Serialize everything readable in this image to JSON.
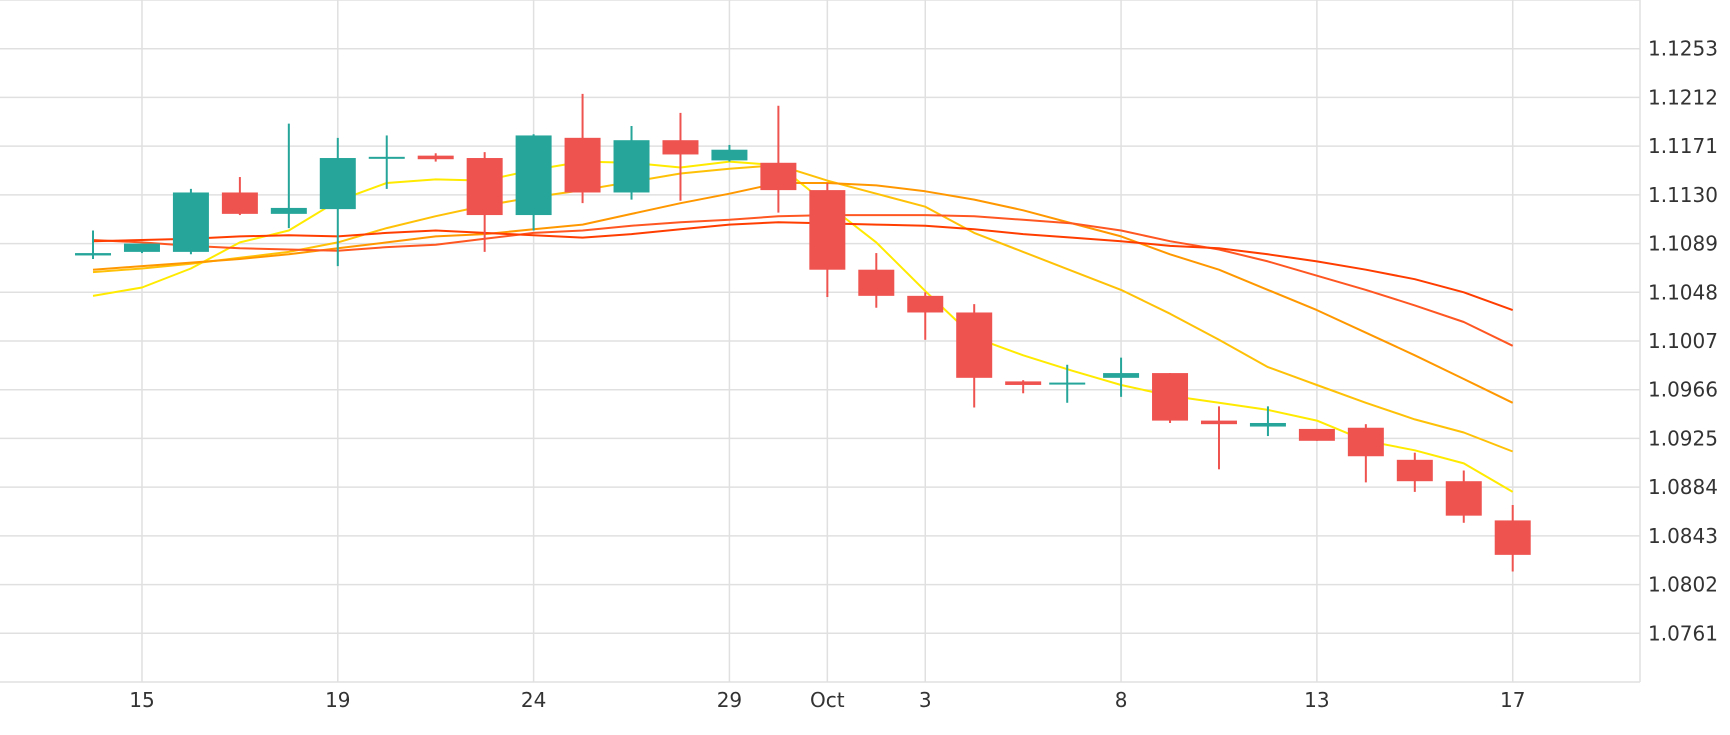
{
  "chart_data": {
    "type": "candlestick",
    "colors": {
      "up": "#26a69a",
      "down": "#ef5350",
      "grid": "#e0e0e0",
      "axis_text": "#333333",
      "ma_lines": [
        "#ffea00",
        "#ffc107",
        "#ff9800",
        "#ff5722",
        "#ff3d00"
      ]
    },
    "x_ticks": [
      {
        "day": 15,
        "label": "15"
      },
      {
        "day": 19,
        "label": "19"
      },
      {
        "day": 23,
        "label": "24"
      },
      {
        "day": 27,
        "label": "29"
      },
      {
        "day": 29,
        "label": "Oct"
      },
      {
        "day": 31,
        "label": "3"
      },
      {
        "day": 35,
        "label": "8"
      },
      {
        "day": 39,
        "label": "13"
      },
      {
        "day": 43,
        "label": "17"
      }
    ],
    "y_ticks": [
      "1.0761",
      "1.0802",
      "1.0843",
      "1.0884",
      "1.0925",
      "1.0966",
      "1.1007",
      "1.1048",
      "1.1089",
      "1.1130",
      "1.1171",
      "1.1212",
      "1.1253"
    ],
    "ylim": [
      1.072,
      1.1294
    ],
    "xlim": [
      12.1,
      45.6
    ],
    "candles": [
      {
        "day": 14,
        "open": 1.1079,
        "high": 1.11,
        "low": 1.1076,
        "close": 1.1081
      },
      {
        "day": 15,
        "open": 1.1082,
        "high": 1.1089,
        "low": 1.1081,
        "close": 1.1089
      },
      {
        "day": 16,
        "open": 1.1082,
        "high": 1.1135,
        "low": 1.108,
        "close": 1.1132
      },
      {
        "day": 17,
        "open": 1.1132,
        "high": 1.1145,
        "low": 1.1113,
        "close": 1.1114
      },
      {
        "day": 18,
        "open": 1.1114,
        "high": 1.119,
        "low": 1.1102,
        "close": 1.1119
      },
      {
        "day": 19,
        "open": 1.1118,
        "high": 1.1178,
        "low": 1.107,
        "close": 1.1161
      },
      {
        "day": 20,
        "open": 1.1161,
        "high": 1.118,
        "low": 1.1135,
        "close": 1.1162
      },
      {
        "day": 21,
        "open": 1.1163,
        "high": 1.1165,
        "low": 1.1158,
        "close": 1.116
      },
      {
        "day": 22,
        "open": 1.1161,
        "high": 1.1166,
        "low": 1.1082,
        "close": 1.1113
      },
      {
        "day": 23,
        "open": 1.1113,
        "high": 1.1181,
        "low": 1.11,
        "close": 1.118
      },
      {
        "day": 24,
        "open": 1.1178,
        "high": 1.1215,
        "low": 1.1123,
        "close": 1.1132
      },
      {
        "day": 25,
        "open": 1.1132,
        "high": 1.1188,
        "low": 1.1126,
        "close": 1.1176
      },
      {
        "day": 26,
        "open": 1.1176,
        "high": 1.1199,
        "low": 1.1125,
        "close": 1.1164
      },
      {
        "day": 27,
        "open": 1.1159,
        "high": 1.1172,
        "low": 1.1158,
        "close": 1.1168
      },
      {
        "day": 28,
        "open": 1.1157,
        "high": 1.1205,
        "low": 1.1115,
        "close": 1.1134
      },
      {
        "day": 29,
        "open": 1.1134,
        "high": 1.114,
        "low": 1.1044,
        "close": 1.1067
      },
      {
        "day": 30,
        "open": 1.1067,
        "high": 1.1081,
        "low": 1.1035,
        "close": 1.1045
      },
      {
        "day": 31,
        "open": 1.1045,
        "high": 1.1048,
        "low": 1.1008,
        "close": 1.1031
      },
      {
        "day": 32,
        "open": 1.1031,
        "high": 1.1038,
        "low": 1.0951,
        "close": 1.0976
      },
      {
        "day": 33,
        "open": 1.0973,
        "high": 1.0974,
        "low": 1.0963,
        "close": 1.097
      },
      {
        "day": 33.9,
        "open": 1.0972,
        "high": 1.0987,
        "low": 1.0955,
        "close": 1.0972
      },
      {
        "day": 35,
        "open": 1.0976,
        "high": 1.0993,
        "low": 1.096,
        "close": 1.098
      },
      {
        "day": 36,
        "open": 1.098,
        "high": 1.098,
        "low": 1.0938,
        "close": 1.094
      },
      {
        "day": 37,
        "open": 1.094,
        "high": 1.0952,
        "low": 1.0899,
        "close": 1.0937
      },
      {
        "day": 38,
        "open": 1.0935,
        "high": 1.0952,
        "low": 1.0927,
        "close": 1.0938
      },
      {
        "day": 39,
        "open": 1.0933,
        "high": 1.0933,
        "low": 1.0923,
        "close": 1.0923
      },
      {
        "day": 40,
        "open": 1.0934,
        "high": 1.0937,
        "low": 1.0888,
        "close": 1.091
      },
      {
        "day": 41,
        "open": 1.0907,
        "high": 1.0913,
        "low": 1.088,
        "close": 1.0889
      },
      {
        "day": 42,
        "open": 1.0889,
        "high": 1.0898,
        "low": 1.0854,
        "close": 1.086
      },
      {
        "day": 43,
        "open": 1.0856,
        "high": 1.0869,
        "low": 1.0813,
        "close": 1.0827
      }
    ],
    "moving_averages": [
      {
        "color": "#ffea00",
        "points": [
          [
            14,
            1.1045
          ],
          [
            15,
            1.1052
          ],
          [
            16,
            1.1068
          ],
          [
            17,
            1.109
          ],
          [
            18,
            1.11
          ],
          [
            19,
            1.1125
          ],
          [
            20,
            1.114
          ],
          [
            21,
            1.1143
          ],
          [
            22,
            1.1142
          ],
          [
            23,
            1.1151
          ],
          [
            24,
            1.1158
          ],
          [
            25,
            1.1157
          ],
          [
            26,
            1.1153
          ],
          [
            27,
            1.1158
          ],
          [
            28,
            1.1155
          ],
          [
            29,
            1.1122
          ],
          [
            30,
            1.109
          ],
          [
            31,
            1.1049
          ],
          [
            32,
            1.101
          ],
          [
            33,
            1.0995
          ],
          [
            34,
            1.0982
          ],
          [
            35,
            1.097
          ],
          [
            36,
            1.0961
          ],
          [
            37,
            1.0955
          ],
          [
            38,
            1.0949
          ],
          [
            39,
            1.094
          ],
          [
            40,
            1.0923
          ],
          [
            41,
            1.0915
          ],
          [
            42,
            1.0904
          ],
          [
            43,
            1.088
          ]
        ]
      },
      {
        "color": "#ffc107",
        "points": [
          [
            14,
            1.1065
          ],
          [
            15,
            1.1068
          ],
          [
            16,
            1.1072
          ],
          [
            17,
            1.1077
          ],
          [
            18,
            1.1082
          ],
          [
            19,
            1.109
          ],
          [
            20,
            1.1102
          ],
          [
            21,
            1.1112
          ],
          [
            22,
            1.1121
          ],
          [
            23,
            1.1128
          ],
          [
            24,
            1.1134
          ],
          [
            25,
            1.1141
          ],
          [
            26,
            1.1148
          ],
          [
            27,
            1.1152
          ],
          [
            28,
            1.1155
          ],
          [
            29,
            1.1142
          ],
          [
            30,
            1.1131
          ],
          [
            31,
            1.112
          ],
          [
            32,
            1.1098
          ],
          [
            33,
            1.1082
          ],
          [
            34,
            1.1066
          ],
          [
            35,
            1.105
          ],
          [
            36,
            1.103
          ],
          [
            37,
            1.1008
          ],
          [
            38,
            1.0985
          ],
          [
            39,
            1.097
          ],
          [
            40,
            1.0955
          ],
          [
            41,
            1.0941
          ],
          [
            42,
            1.093
          ],
          [
            43,
            1.0914
          ]
        ]
      },
      {
        "color": "#ff9800",
        "points": [
          [
            14,
            1.1067
          ],
          [
            15,
            1.107
          ],
          [
            16,
            1.1073
          ],
          [
            17,
            1.1076
          ],
          [
            18,
            1.108
          ],
          [
            19,
            1.1085
          ],
          [
            20,
            1.109
          ],
          [
            21,
            1.1095
          ],
          [
            22,
            1.1097
          ],
          [
            23,
            1.1101
          ],
          [
            24,
            1.1105
          ],
          [
            25,
            1.1114
          ],
          [
            26,
            1.1123
          ],
          [
            27,
            1.1131
          ],
          [
            28,
            1.114
          ],
          [
            29,
            1.114
          ],
          [
            30,
            1.1138
          ],
          [
            31,
            1.1133
          ],
          [
            32,
            1.1126
          ],
          [
            33,
            1.1117
          ],
          [
            34,
            1.1106
          ],
          [
            35,
            1.1095
          ],
          [
            36,
            1.108
          ],
          [
            37,
            1.1067
          ],
          [
            38,
            1.105
          ],
          [
            39,
            1.1033
          ],
          [
            40,
            1.1014
          ],
          [
            41,
            1.0995
          ],
          [
            42,
            1.0975
          ],
          [
            43,
            1.0955
          ]
        ]
      },
      {
        "color": "#ff5722",
        "points": [
          [
            14,
            1.1092
          ],
          [
            15,
            1.109
          ],
          [
            16,
            1.1087
          ],
          [
            17,
            1.1085
          ],
          [
            18,
            1.1084
          ],
          [
            19,
            1.1083
          ],
          [
            20,
            1.1086
          ],
          [
            21,
            1.1088
          ],
          [
            22,
            1.1093
          ],
          [
            23,
            1.1098
          ],
          [
            24,
            1.11
          ],
          [
            25,
            1.1104
          ],
          [
            26,
            1.1107
          ],
          [
            27,
            1.1109
          ],
          [
            28,
            1.1112
          ],
          [
            29,
            1.1113
          ],
          [
            30,
            1.1113
          ],
          [
            31,
            1.1113
          ],
          [
            32,
            1.1112
          ],
          [
            33,
            1.1109
          ],
          [
            34,
            1.1106
          ],
          [
            35,
            1.11
          ],
          [
            36,
            1.1091
          ],
          [
            37,
            1.1084
          ],
          [
            38,
            1.1074
          ],
          [
            39,
            1.1062
          ],
          [
            40,
            1.105
          ],
          [
            41,
            1.1037
          ],
          [
            42,
            1.1023
          ],
          [
            43,
            1.1003
          ]
        ]
      },
      {
        "color": "#ff3d00",
        "points": [
          [
            14,
            1.1091
          ],
          [
            15,
            1.1092
          ],
          [
            16,
            1.1093
          ],
          [
            17,
            1.1095
          ],
          [
            18,
            1.1096
          ],
          [
            19,
            1.1095
          ],
          [
            20,
            1.1098
          ],
          [
            21,
            1.11
          ],
          [
            22,
            1.1098
          ],
          [
            23,
            1.1096
          ],
          [
            24,
            1.1094
          ],
          [
            25,
            1.1097
          ],
          [
            26,
            1.1101
          ],
          [
            27,
            1.1105
          ],
          [
            28,
            1.1107
          ],
          [
            29,
            1.1106
          ],
          [
            30,
            1.1105
          ],
          [
            31,
            1.1104
          ],
          [
            32,
            1.1101
          ],
          [
            33,
            1.1097
          ],
          [
            34,
            1.1094
          ],
          [
            35,
            1.1091
          ],
          [
            36,
            1.1087
          ],
          [
            37,
            1.1085
          ],
          [
            38,
            1.108
          ],
          [
            39,
            1.1074
          ],
          [
            40,
            1.1067
          ],
          [
            41,
            1.1059
          ],
          [
            42,
            1.1048
          ],
          [
            43,
            1.1033
          ]
        ]
      }
    ]
  }
}
